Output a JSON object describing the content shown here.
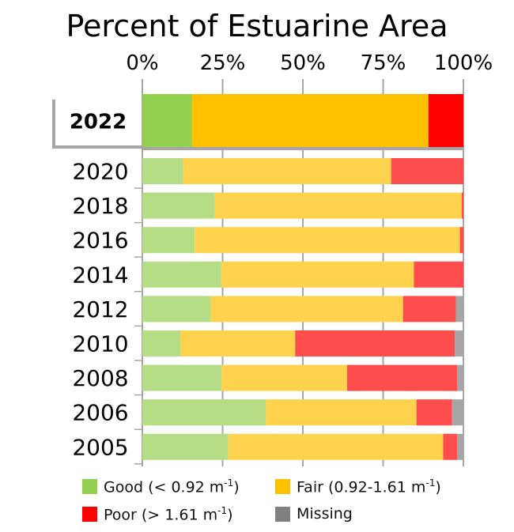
{
  "chart_data": {
    "type": "bar",
    "orientation": "horizontal",
    "stacked": true,
    "title": "Percent of Estuarine Area",
    "xlim": [
      0,
      100
    ],
    "x_ticks": [
      "0%",
      "25%",
      "50%",
      "75%",
      "100%"
    ],
    "x_tick_values": [
      0,
      25,
      50,
      75,
      100
    ],
    "x_axis_position": "top",
    "grid": true,
    "legend_position": "bottom",
    "highlighted_category": "2022",
    "categories": [
      "2022",
      "2020",
      "2018",
      "2016",
      "2014",
      "2012",
      "2010",
      "2008",
      "2006",
      "2005"
    ],
    "series": [
      {
        "name": "Good",
        "legend": "Good (< 0.92 m",
        "legend_sup": "-1",
        "legend_end": ")",
        "color": "#92d050",
        "muted_color": "#b5dd86",
        "values": [
          15.4,
          12.7,
          22.6,
          16.3,
          24.6,
          21.3,
          11.9,
          24.7,
          38.5,
          26.8
        ]
      },
      {
        "name": "Fair",
        "legend": "Fair (0.92-1.61 m",
        "legend_sup": "-1",
        "legend_end": ")",
        "color": "#ffc000",
        "muted_color": "#ffd24d",
        "values": [
          73.7,
          64.8,
          76.9,
          82.6,
          60.0,
          59.9,
          35.7,
          39.1,
          46.9,
          66.9
        ]
      },
      {
        "name": "Poor",
        "legend": "Poor (> 1.61 m",
        "legend_sup": "-1",
        "legend_end": ")",
        "color": "#ff0000",
        "muted_color": "#ff4d4d",
        "values": [
          10.9,
          22.5,
          0.5,
          1.1,
          15.4,
          16.5,
          49.7,
          34.3,
          11.1,
          4.4
        ]
      },
      {
        "name": "Missing",
        "legend": "Missing",
        "legend_sup": "",
        "legend_end": "",
        "color": "#808080",
        "muted_color": "#a6a6a6",
        "values": [
          0,
          0,
          0,
          0,
          0,
          2.3,
          2.7,
          1.9,
          3.5,
          1.9
        ]
      }
    ]
  }
}
